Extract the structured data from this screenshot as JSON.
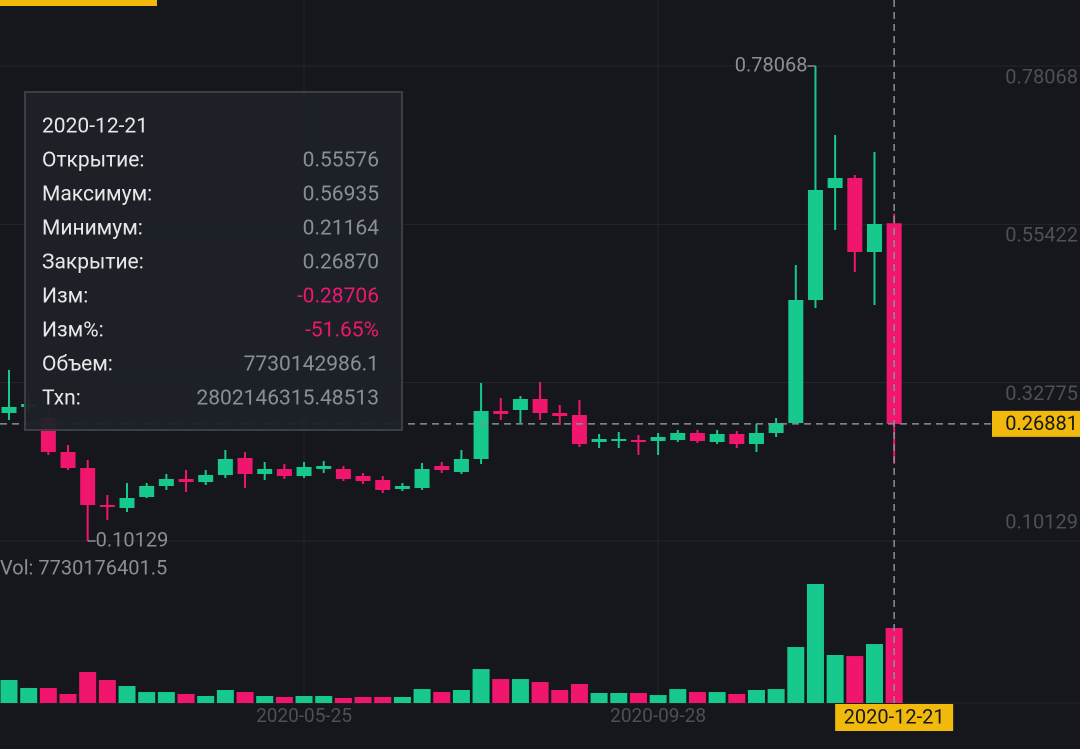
{
  "chart_data": {
    "type": "candlestick",
    "x": [
      "2020-02-10",
      "2020-02-17",
      "2020-02-24",
      "2020-03-02",
      "2020-03-09",
      "2020-03-16",
      "2020-03-23",
      "2020-03-30",
      "2020-04-06",
      "2020-04-13",
      "2020-04-20",
      "2020-04-27",
      "2020-05-04",
      "2020-05-11",
      "2020-05-18",
      "2020-05-25",
      "2020-06-01",
      "2020-06-08",
      "2020-06-15",
      "2020-06-22",
      "2020-06-29",
      "2020-07-06",
      "2020-07-13",
      "2020-07-20",
      "2020-07-27",
      "2020-08-03",
      "2020-08-10",
      "2020-08-17",
      "2020-08-24",
      "2020-08-31",
      "2020-09-07",
      "2020-09-14",
      "2020-09-21",
      "2020-09-28",
      "2020-10-05",
      "2020-10-12",
      "2020-10-19",
      "2020-10-26",
      "2020-11-02",
      "2020-11-09",
      "2020-11-16",
      "2020-11-23",
      "2020-11-30",
      "2020-12-07",
      "2020-12-14",
      "2020-12-21"
    ],
    "open": [
      0.28437,
      0.29295,
      0.27721,
      0.22858,
      0.2057,
      0.15278,
      0.14849,
      0.16422,
      0.17995,
      0.18997,
      0.18568,
      0.19569,
      0.22,
      0.19712,
      0.20427,
      0.19426,
      0.20427,
      0.20427,
      0.19426,
      0.18854,
      0.17566,
      0.17709,
      0.20856,
      0.19998,
      0.21857,
      0.28723,
      0.28866,
      0.30439,
      0.28437,
      0.28151,
      0.24289,
      0.24432,
      0.24575,
      0.24432,
      0.24575,
      0.25576,
      0.24289,
      0.25433,
      0.24003,
      0.25576,
      0.27006,
      0.44599,
      0.60618,
      0.62049,
      0.51465,
      0.55576
    ],
    "high": [
      0.34587,
      0.30582,
      0.28866,
      0.2386,
      0.21714,
      0.16708,
      0.18425,
      0.18425,
      0.19712,
      0.20284,
      0.20284,
      0.23144,
      0.22858,
      0.21428,
      0.21142,
      0.21428,
      0.21571,
      0.20856,
      0.19855,
      0.19426,
      0.18425,
      0.21285,
      0.21428,
      0.23144,
      0.32728,
      0.30582,
      0.30868,
      0.32871,
      0.29581,
      0.30296,
      0.25433,
      0.25719,
      0.2529,
      0.25576,
      0.26005,
      0.26005,
      0.26005,
      0.25862,
      0.26863,
      0.27721,
      0.49605,
      0.78068,
      0.68199,
      0.62478,
      0.65767,
      0.56935
    ],
    "low": [
      0.27435,
      0.28437,
      0.22429,
      0.20284,
      0.10129,
      0.13132,
      0.14277,
      0.16279,
      0.17423,
      0.17137,
      0.18138,
      0.1914,
      0.17709,
      0.18854,
      0.18997,
      0.1914,
      0.19855,
      0.18711,
      0.18282,
      0.16994,
      0.1728,
      0.17423,
      0.19855,
      0.19712,
      0.21142,
      0.27435,
      0.27006,
      0.27435,
      0.2672,
      0.23574,
      0.23431,
      0.23431,
      0.22429,
      0.22429,
      0.24289,
      0.24146,
      0.24003,
      0.23431,
      0.22858,
      0.25004,
      0.26863,
      0.43455,
      0.54611,
      0.48604,
      0.43884,
      0.21164
    ],
    "close": [
      0.29295,
      0.29724,
      0.22858,
      0.2057,
      0.15278,
      0.14992,
      0.16279,
      0.17995,
      0.18997,
      0.18568,
      0.19569,
      0.21857,
      0.19712,
      0.20427,
      0.19426,
      0.20713,
      0.20856,
      0.18997,
      0.18711,
      0.17423,
      0.17995,
      0.20427,
      0.20284,
      0.21857,
      0.28723,
      0.28294,
      0.30439,
      0.28437,
      0.28008,
      0.24003,
      0.24718,
      0.24718,
      0.24289,
      0.25004,
      0.25576,
      0.24432,
      0.25433,
      0.24003,
      0.25576,
      0.27006,
      0.44599,
      0.60332,
      0.62049,
      0.51465,
      0.55469,
      0.2687
    ],
    "volume": [
      2370000000,
      1550000000,
      1550000000,
      930000000,
      3200000000,
      2370000000,
      1750000000,
      1130000000,
      1130000000,
      930000000,
      720000000,
      1340000000,
      1130000000,
      720000000,
      620000000,
      720000000,
      720000000,
      520000000,
      620000000,
      620000000,
      620000000,
      1440000000,
      1130000000,
      1340000000,
      3500000000,
      2470000000,
      2470000000,
      2160000000,
      1340000000,
      1960000000,
      1030000000,
      1030000000,
      1030000000,
      820000000,
      1440000000,
      1130000000,
      1130000000,
      930000000,
      1340000000,
      1440000000,
      5770000000,
      12270000000,
      4950000000,
      4840000000,
      6080000000,
      7730142986
    ],
    "ylim": [
      0.0741,
      0.8751
    ],
    "yticks": [
      0.78068,
      0.55422,
      0.32775,
      0.10129
    ],
    "xticks": [
      "2020-05-25",
      "2020-09-28"
    ],
    "up_color": "#17c98c",
    "down_color": "#f0166e",
    "last_price": 0.26881,
    "volume_label": "Vol: 7730176401.5",
    "tooltip": {
      "date": "2020-12-21",
      "rows": [
        {
          "label": "Открытие:",
          "value": "0.55576"
        },
        {
          "label": "Максимум:",
          "value": "0.56935"
        },
        {
          "label": "Минимум:",
          "value": "0.21164"
        },
        {
          "label": "Закрытие:",
          "value": "0.26870"
        },
        {
          "label": "Изм:",
          "value": "-0.28706",
          "color": "#f0166e"
        },
        {
          "label": "Изм%:",
          "value": "-51.65%",
          "color": "#f0166e"
        },
        {
          "label": "Объем:",
          "value": "7730142986.1"
        },
        {
          "label": "Txn:",
          "value": "2802146315.48513"
        }
      ]
    }
  }
}
